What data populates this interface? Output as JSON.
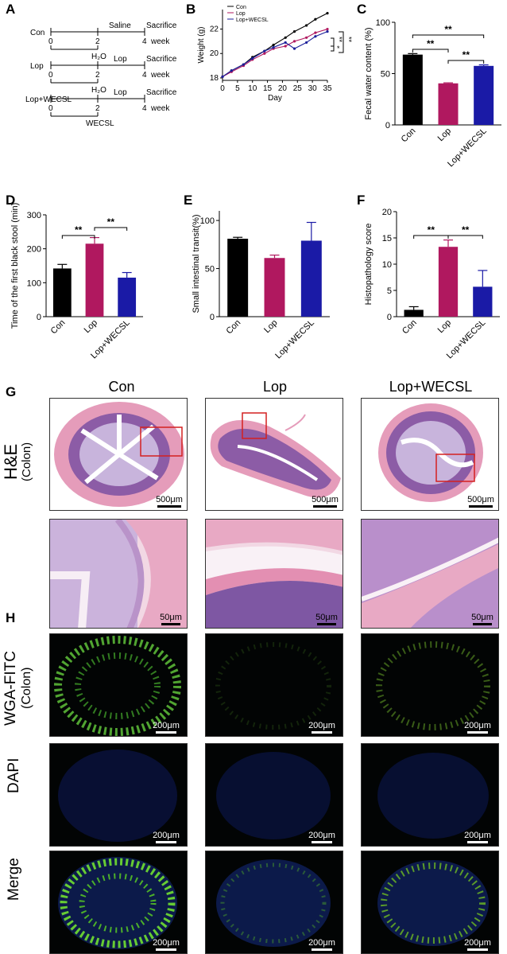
{
  "panel_labels": [
    "A",
    "B",
    "C",
    "D",
    "E",
    "F",
    "G",
    "H"
  ],
  "panelA": {
    "groups": [
      {
        "name": "Con",
        "above_start": "",
        "above_mid": "Saline",
        "above_end": "Sacrifice",
        "below_mid": "H₂O",
        "bottom_mid": ""
      },
      {
        "name": "Lop",
        "above_start": "",
        "above_mid": "Lop",
        "above_end": "Sacrifice",
        "below_mid": "H₂O",
        "bottom_mid": ""
      },
      {
        "name": "Lop+WECSL",
        "above_start": "",
        "above_mid": "Lop",
        "above_end": "Sacrifice",
        "below_mid": "",
        "bottom_mid": "WECSL"
      }
    ],
    "ticks": [
      "0",
      "2",
      "4"
    ],
    "unit": "week"
  },
  "chart_data": [
    {
      "panel": "B",
      "type": "line",
      "xlabel": "Day",
      "ylabel": "Weight (g)",
      "x": [
        0,
        3,
        7,
        10,
        14,
        17,
        21,
        24,
        28,
        31,
        35
      ],
      "xticks": [
        "0",
        "5",
        "10",
        "15",
        "20",
        "25",
        "30",
        "35"
      ],
      "yticks": [
        "18",
        "20",
        "22"
      ],
      "ylim": [
        17.8,
        23.6
      ],
      "series": [
        {
          "name": "Con",
          "color": "#000000",
          "values": [
            18.1,
            18.6,
            19.1,
            19.7,
            20.2,
            20.7,
            21.3,
            21.8,
            22.3,
            22.8,
            23.3
          ]
        },
        {
          "name": "Lop",
          "color": "#b0185f",
          "values": [
            18.1,
            18.5,
            19.0,
            19.5,
            20.0,
            20.4,
            20.6,
            21.0,
            21.3,
            21.7,
            22.0
          ]
        },
        {
          "name": "Lop+WECSL",
          "color": "#1b1f9a",
          "values": [
            18.1,
            18.6,
            19.1,
            19.6,
            20.2,
            20.5,
            20.9,
            20.4,
            20.9,
            21.4,
            21.8
          ]
        }
      ],
      "annotations": [
        "**",
        "*",
        "**"
      ]
    },
    {
      "panel": "C",
      "type": "bar",
      "ylabel": "Fecal water content (%)",
      "categories": [
        "Con",
        "Lop",
        "Lop+WECSL"
      ],
      "values": [
        68.5,
        40.5,
        57.5
      ],
      "errors": [
        1,
        0.5,
        1
      ],
      "ylim": [
        0,
        100
      ],
      "yticks": [
        "0",
        "50",
        "100"
      ],
      "colors": [
        "#000000",
        "#b0185f",
        "#1a1aa6"
      ],
      "annotations": [
        "**",
        "**",
        "**"
      ]
    },
    {
      "panel": "D",
      "type": "bar",
      "ylabel": "Time of the first black stool (min)",
      "categories": [
        "Con",
        "Lop",
        "Lop+WECSL"
      ],
      "values": [
        142,
        215,
        115
      ],
      "errors": [
        12,
        18,
        15
      ],
      "ylim": [
        0,
        300
      ],
      "yticks": [
        "0",
        "100",
        "200",
        "300"
      ],
      "colors": [
        "#000000",
        "#b0185f",
        "#1a1aa6"
      ],
      "annotations": [
        "**",
        "**"
      ]
    },
    {
      "panel": "E",
      "type": "bar",
      "ylabel": "Small intestinal transit(%)",
      "categories": [
        "Con",
        "Lop",
        "Lop+WECSL"
      ],
      "values": [
        81,
        61,
        79
      ],
      "errors": [
        1.5,
        3,
        19
      ],
      "ylim": [
        0,
        110
      ],
      "yticks": [
        "0",
        "50",
        "100"
      ],
      "colors": [
        "#000000",
        "#b0185f",
        "#1a1aa6"
      ],
      "annotations": []
    },
    {
      "panel": "F",
      "type": "bar",
      "ylabel": "Histopathology score",
      "categories": [
        "Con",
        "Lop",
        "Lop+WECSL"
      ],
      "values": [
        1.3,
        13.3,
        5.7
      ],
      "errors": [
        0.6,
        1.3,
        3.1
      ],
      "ylim": [
        0,
        20
      ],
      "yticks": [
        "0",
        "5",
        "10",
        "15",
        "20"
      ],
      "colors": [
        "#000000",
        "#b0185f",
        "#1a1aa6"
      ],
      "annotations": [
        "**",
        "**"
      ]
    }
  ],
  "panelG": {
    "columns": [
      "Con",
      "Lop",
      "Lop+WECSL"
    ],
    "row_label": "H&E",
    "row_sub": "(Colon)",
    "scale_overview": "500μm",
    "scale_zoom": "50μm"
  },
  "panelH": {
    "rows": [
      {
        "label": "WGA-FITC",
        "sub": "(Colon)"
      },
      {
        "label": "DAPI",
        "sub": ""
      },
      {
        "label": "Merge",
        "sub": ""
      }
    ],
    "scale": "200μm"
  }
}
